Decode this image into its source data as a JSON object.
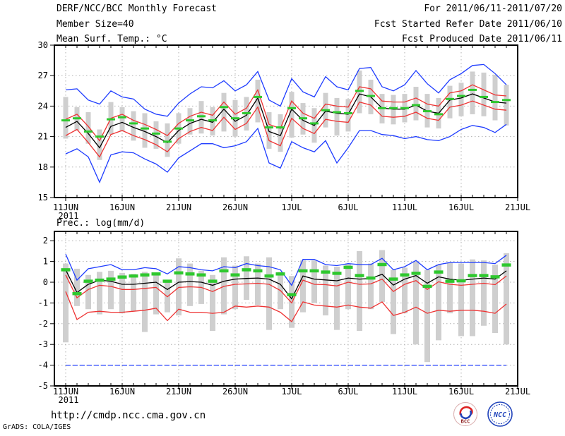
{
  "header": {
    "title": "DERF/NCC/BCC Monthly Forecast",
    "member_size": "Member Size=40",
    "temp_label": "Mean Surf. Temp.: °C",
    "for_range": "For 2011/06/11-2011/07/20",
    "refer_date": "Fcst Started Refer Date 2011/06/10",
    "produced_date": "Fcst Produced Date 2011/06/11"
  },
  "footer": {
    "url": "http://cmdp.ncc.cma.gov.cn",
    "grads_credit": "GrADS: COLA/IGES",
    "bcc_logo_text": "BCC",
    "ncc_logo_text": "NCC"
  },
  "colors": {
    "blue": "#1e3cff",
    "red": "#ee3333",
    "black": "#000000",
    "green": "#2ec82e",
    "bar_gray": "#cfcfcf",
    "grid_gray": "#b0b0b0",
    "frame": "#000000",
    "logo_blue": "#2244bb",
    "logo_red": "#cc2222",
    "logo_darkred": "#8b1a1a"
  },
  "chart_data": [
    {
      "type": "line",
      "name": "temp-chart",
      "title": "Mean Surf. Temp.: °C",
      "ylim": [
        15,
        30
      ],
      "yticks": [
        15,
        18,
        21,
        24,
        27,
        30
      ],
      "x_tick_labels": [
        "11JUN",
        "16JUN",
        "21JUN",
        "26JUN",
        "1JUL",
        "6JUL",
        "11JUL",
        "16JUL",
        "21JUL"
      ],
      "x_tick_days": [
        0,
        5,
        10,
        15,
        20,
        25,
        30,
        35,
        40
      ],
      "x_year": "2011",
      "grid": true,
      "x_dates": [
        "11JUN",
        "12JUN",
        "13JUN",
        "14JUN",
        "15JUN",
        "16JUN",
        "17JUN",
        "18JUN",
        "19JUN",
        "20JUN",
        "21JUN",
        "22JUN",
        "23JUN",
        "24JUN",
        "25JUN",
        "26JUN",
        "27JUN",
        "28JUN",
        "29JUN",
        "30JUN",
        "1JUL",
        "2JUL",
        "3JUL",
        "4JUL",
        "5JUL",
        "6JUL",
        "7JUL",
        "8JUL",
        "9JUL",
        "10JUL",
        "11JUL",
        "12JUL",
        "13JUL",
        "14JUL",
        "15JUL",
        "16JUL",
        "17JUL",
        "18JUL",
        "19JUL",
        "20JUL"
      ],
      "series": [
        {
          "name": "ensemble-max",
          "color": "blue",
          "values": [
            25.6,
            25.7,
            24.6,
            24.2,
            25.5,
            24.9,
            24.7,
            23.7,
            23.2,
            23.0,
            24.3,
            25.2,
            25.9,
            25.8,
            26.5,
            25.5,
            26.1,
            27.4,
            24.6,
            24.0,
            26.7,
            25.4,
            24.9,
            26.9,
            25.9,
            25.6,
            27.7,
            27.8,
            25.9,
            25.5,
            26.1,
            27.5,
            26.2,
            25.3,
            26.6,
            27.2,
            28.0,
            28.1,
            27.2,
            26.1
          ]
        },
        {
          "name": "ensemble-min",
          "color": "blue",
          "values": [
            19.3,
            19.8,
            19.0,
            16.5,
            19.2,
            19.5,
            19.4,
            18.8,
            18.3,
            17.5,
            18.9,
            19.6,
            20.3,
            20.3,
            19.9,
            20.1,
            20.5,
            21.8,
            18.4,
            17.9,
            20.5,
            19.9,
            19.5,
            20.6,
            18.4,
            19.9,
            21.6,
            21.6,
            21.2,
            21.1,
            20.8,
            21.0,
            20.7,
            20.6,
            21.0,
            21.7,
            22.1,
            21.9,
            21.4,
            22.2
          ]
        },
        {
          "name": "mean-plus-spread",
          "color": "red",
          "values": [
            22.7,
            23.2,
            22.0,
            20.6,
            22.8,
            23.2,
            22.6,
            22.2,
            21.7,
            21.1,
            22.3,
            23.0,
            23.4,
            23.1,
            24.4,
            23.2,
            23.8,
            25.6,
            22.2,
            21.8,
            24.5,
            23.3,
            22.8,
            24.2,
            24.0,
            23.9,
            25.9,
            25.7,
            24.5,
            24.4,
            24.4,
            24.8,
            24.2,
            24.0,
            25.3,
            25.5,
            26.1,
            25.6,
            25.1,
            25.0
          ]
        },
        {
          "name": "mean-minus-spread",
          "color": "red",
          "values": [
            21.1,
            21.7,
            20.4,
            19.0,
            21.2,
            21.6,
            21.1,
            20.7,
            20.2,
            19.5,
            20.8,
            21.5,
            21.9,
            21.6,
            22.9,
            21.7,
            22.3,
            23.9,
            20.6,
            20.1,
            22.8,
            21.8,
            21.3,
            22.7,
            22.5,
            22.4,
            24.4,
            24.1,
            23.0,
            22.9,
            23.0,
            23.4,
            22.8,
            22.6,
            23.9,
            24.1,
            24.5,
            24.1,
            23.7,
            23.6
          ]
        },
        {
          "name": "ensemble-mean",
          "color": "black",
          "values": [
            21.9,
            22.5,
            21.3,
            19.9,
            22.0,
            22.4,
            21.9,
            21.5,
            21.0,
            20.4,
            21.6,
            22.3,
            22.7,
            22.4,
            23.7,
            22.5,
            23.1,
            24.8,
            21.5,
            21.1,
            23.7,
            22.6,
            22.1,
            23.5,
            23.3,
            23.2,
            25.2,
            24.9,
            23.8,
            23.7,
            23.7,
            24.1,
            23.5,
            23.3,
            24.6,
            24.8,
            25.2,
            24.8,
            24.4,
            24.3
          ]
        }
      ],
      "green_dashes": {
        "name": "reference-green-dashes",
        "values": [
          22.6,
          22.8,
          21.5,
          21.0,
          22.7,
          22.9,
          22.3,
          21.8,
          21.3,
          20.5,
          21.8,
          22.6,
          23.0,
          22.6,
          23.9,
          22.8,
          23.3,
          24.9,
          21.9,
          21.9,
          23.8,
          22.8,
          22.3,
          23.6,
          23.4,
          23.3,
          25.5,
          25.0,
          23.8,
          23.8,
          23.8,
          24.1,
          23.5,
          23.2,
          24.7,
          25.0,
          25.6,
          24.9,
          24.4,
          24.6
        ]
      },
      "bars": {
        "name": "member-spread-bars",
        "top": [
          24.9,
          23.9,
          23.4,
          21.7,
          24.4,
          23.9,
          23.5,
          23.3,
          22.5,
          22.3,
          23.3,
          23.8,
          24.5,
          23.9,
          25.3,
          24.6,
          24.9,
          26.6,
          23.4,
          23.2,
          25.4,
          24.3,
          23.8,
          25.3,
          24.8,
          24.7,
          27.5,
          26.6,
          25.2,
          25.1,
          25.2,
          25.9,
          25.2,
          24.8,
          26.0,
          26.3,
          27.4,
          27.3,
          27.1,
          26.1
        ],
        "bottom": [
          20.8,
          21.6,
          20.3,
          18.7,
          21.2,
          21.5,
          20.6,
          19.9,
          19.8,
          19.0,
          20.3,
          21.2,
          21.3,
          21.1,
          21.5,
          21.0,
          21.6,
          22.4,
          19.8,
          19.5,
          20.9,
          21.2,
          20.4,
          21.9,
          21.1,
          21.5,
          23.3,
          23.2,
          22.3,
          22.2,
          22.4,
          22.6,
          21.9,
          21.8,
          22.8,
          23.0,
          23.2,
          23.0,
          22.6,
          22.1
        ]
      }
    },
    {
      "type": "line",
      "name": "precip-chart",
      "title": "Prec.: log(mm/d)",
      "ylim": [
        -5,
        2
      ],
      "yticks": [
        -5,
        -4,
        -3,
        -2,
        -1,
        0,
        1,
        2
      ],
      "x_tick_labels": [
        "11JUN",
        "16JUN",
        "21JUN",
        "26JUN",
        "1JUL",
        "6JUL",
        "11JUL",
        "16JUL",
        "21JUL"
      ],
      "x_tick_days": [
        0,
        5,
        10,
        15,
        20,
        25,
        30,
        35,
        40
      ],
      "x_year": "2011",
      "grid": true,
      "x_dates": [
        "11JUN",
        "12JUN",
        "13JUN",
        "14JUN",
        "15JUN",
        "16JUN",
        "17JUN",
        "18JUN",
        "19JUN",
        "20JUN",
        "21JUN",
        "22JUN",
        "23JUN",
        "24JUN",
        "25JUN",
        "26JUN",
        "27JUN",
        "28JUN",
        "29JUN",
        "30JUN",
        "1JUL",
        "2JUL",
        "3JUL",
        "4JUL",
        "5JUL",
        "6JUL",
        "7JUL",
        "8JUL",
        "9JUL",
        "10JUL",
        "11JUL",
        "12JUL",
        "13JUL",
        "14JUL",
        "15JUL",
        "16JUL",
        "17JUL",
        "18JUL",
        "19JUL",
        "20JUL"
      ],
      "series": [
        {
          "name": "ensemble-max",
          "color": "blue",
          "values": [
            1.35,
            0.1,
            0.65,
            0.75,
            0.85,
            0.6,
            0.6,
            0.7,
            0.65,
            0.4,
            0.75,
            0.7,
            0.6,
            0.55,
            0.75,
            0.7,
            0.9,
            0.8,
            0.75,
            0.6,
            -0.15,
            1.1,
            1.1,
            0.85,
            0.8,
            0.9,
            0.85,
            0.85,
            1.15,
            0.6,
            0.75,
            1.05,
            0.6,
            0.85,
            0.95,
            0.95,
            0.95,
            0.95,
            0.9,
            1.3
          ]
        },
        {
          "name": "ensemble-min-clipped",
          "color": "blue",
          "dash": true,
          "values": [
            -4,
            -4,
            -4,
            -4,
            -4,
            -4,
            -4,
            -4,
            -4,
            -4,
            -4,
            -4,
            -4,
            -4,
            -4,
            -4,
            -4,
            -4,
            -4,
            -4,
            -4,
            -4,
            -4,
            -4,
            -4,
            -4,
            -4,
            -4,
            -4,
            -4,
            -4,
            -4,
            -4,
            -4,
            -4,
            -4,
            -4,
            -4,
            -4,
            -4
          ]
        },
        {
          "name": "mean-plus-spread",
          "color": "red",
          "values": [
            0.35,
            -0.75,
            -0.35,
            -0.15,
            -0.2,
            -0.35,
            -0.35,
            -0.3,
            -0.25,
            -0.7,
            -0.25,
            -0.22,
            -0.25,
            -0.45,
            -0.2,
            -0.1,
            -0.08,
            -0.05,
            -0.1,
            -0.4,
            -1.0,
            0.1,
            -0.1,
            -0.12,
            -0.18,
            0.0,
            -0.1,
            -0.08,
            0.15,
            -0.45,
            -0.1,
            0.08,
            -0.35,
            0.02,
            -0.1,
            -0.15,
            -0.1,
            -0.05,
            -0.12,
            0.3
          ]
        },
        {
          "name": "mean-minus-spread",
          "color": "red",
          "values": [
            -0.45,
            -1.8,
            -1.45,
            -1.4,
            -1.45,
            -1.45,
            -1.4,
            -1.35,
            -1.25,
            -1.85,
            -1.3,
            -1.45,
            -1.45,
            -1.5,
            -1.45,
            -1.15,
            -1.2,
            -1.15,
            -1.2,
            -1.45,
            -1.9,
            -0.95,
            -1.1,
            -1.15,
            -1.2,
            -1.1,
            -1.2,
            -1.25,
            -0.95,
            -1.6,
            -1.45,
            -1.2,
            -1.5,
            -1.35,
            -1.4,
            -1.35,
            -1.35,
            -1.4,
            -1.5,
            -1.05
          ]
        },
        {
          "name": "ensemble-mean",
          "color": "black",
          "values": [
            0.6,
            -0.5,
            -0.1,
            0.1,
            0.05,
            -0.1,
            -0.1,
            -0.05,
            0.0,
            -0.35,
            0.0,
            0.03,
            0.0,
            -0.15,
            0.05,
            0.15,
            0.18,
            0.2,
            0.15,
            -0.1,
            -0.8,
            0.3,
            0.15,
            0.11,
            0.07,
            0.2,
            0.15,
            0.18,
            0.38,
            -0.14,
            0.15,
            0.32,
            -0.05,
            0.26,
            0.15,
            0.09,
            0.15,
            0.2,
            0.15,
            0.55
          ]
        }
      ],
      "green_dashes": {
        "name": "reference-green-dashes",
        "values": [
          0.6,
          -0.55,
          0.05,
          0.1,
          0.15,
          0.25,
          0.3,
          0.35,
          0.4,
          0.05,
          0.45,
          0.4,
          0.35,
          0.05,
          0.55,
          0.35,
          0.6,
          0.55,
          0.3,
          0.4,
          -0.6,
          0.55,
          0.55,
          0.49,
          0.43,
          0.72,
          0.32,
          0.2,
          0.85,
          0.15,
          0.35,
          0.43,
          -0.2,
          0.49,
          0.05,
          0.07,
          0.32,
          0.32,
          0.26,
          0.83
        ]
      },
      "bars": {
        "name": "member-spread-bars",
        "top": [
          0.9,
          0.65,
          0.35,
          0.5,
          0.55,
          0.45,
          0.4,
          0.5,
          0.45,
          0.1,
          1.15,
          0.9,
          0.55,
          0.35,
          1.2,
          0.8,
          1.25,
          0.9,
          1.2,
          0.5,
          0.3,
          1.05,
          1.05,
          0.8,
          0.75,
          0.9,
          1.5,
          0.9,
          1.55,
          0.6,
          0.7,
          1.0,
          0.6,
          0.85,
          0.95,
          0.9,
          1.1,
          1.05,
          0.85,
          1.4
        ],
        "bottom": [
          -2.9,
          -1.15,
          -1.3,
          -1.55,
          -1.3,
          -1.5,
          -1.4,
          -2.4,
          -1.55,
          -1.45,
          -1.6,
          -1.15,
          -1.05,
          -2.35,
          -1.55,
          -1.3,
          -0.85,
          -1.1,
          -2.3,
          -1.3,
          -2.2,
          -1.45,
          -1.0,
          -1.6,
          -2.3,
          -1.3,
          -2.35,
          -1.3,
          -0.95,
          -2.5,
          -1.5,
          -3.0,
          -3.85,
          -2.8,
          -1.5,
          -2.6,
          -2.6,
          -2.1,
          -2.45,
          -3.0
        ]
      }
    }
  ]
}
